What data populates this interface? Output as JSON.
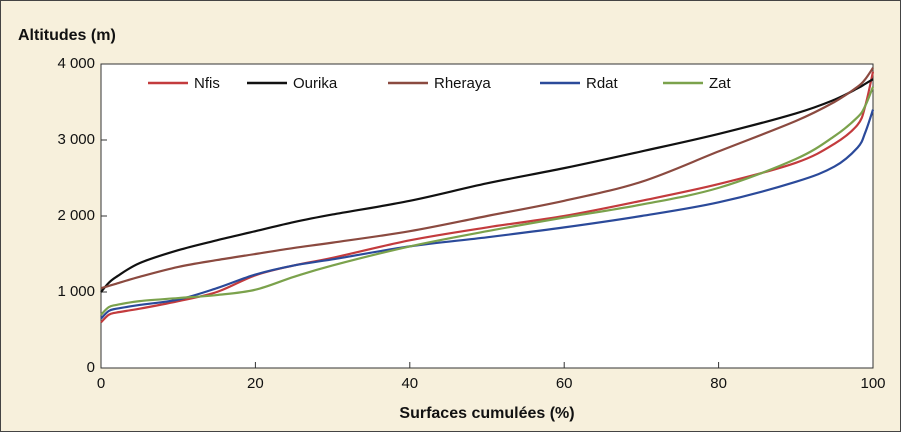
{
  "chart_data": {
    "type": "line",
    "y_label": "Altitudes (m)",
    "x_label": "Surfaces cumulées (%)",
    "x": [
      0,
      1,
      2,
      5,
      10,
      15,
      20,
      25,
      30,
      40,
      50,
      60,
      70,
      80,
      90,
      95,
      98,
      99,
      100
    ],
    "series": [
      {
        "name": "Nfis",
        "color": "#c33b3d",
        "values": [
          600,
          700,
          730,
          780,
          880,
          1000,
          1220,
          1350,
          1450,
          1680,
          1850,
          2000,
          2200,
          2420,
          2700,
          2950,
          3200,
          3450,
          3900
        ]
      },
      {
        "name": "Ourika",
        "color": "#111111",
        "values": [
          1000,
          1120,
          1200,
          1380,
          1550,
          1680,
          1800,
          1920,
          2020,
          2200,
          2430,
          2630,
          2850,
          3080,
          3350,
          3530,
          3680,
          3740,
          3800
        ]
      },
      {
        "name": "Rheraya",
        "color": "#8b4a40",
        "values": [
          1050,
          1080,
          1110,
          1200,
          1330,
          1420,
          1500,
          1580,
          1650,
          1800,
          2000,
          2200,
          2450,
          2850,
          3250,
          3500,
          3700,
          3800,
          3950
        ]
      },
      {
        "name": "Rdat",
        "color": "#2b4a9a",
        "values": [
          650,
          750,
          780,
          830,
          900,
          1050,
          1230,
          1350,
          1430,
          1600,
          1720,
          1850,
          2000,
          2180,
          2450,
          2650,
          2900,
          3100,
          3400
        ]
      },
      {
        "name": "Zat",
        "color": "#7ba24c",
        "values": [
          700,
          800,
          830,
          880,
          920,
          960,
          1030,
          1200,
          1350,
          1600,
          1800,
          1980,
          2150,
          2370,
          2750,
          3050,
          3300,
          3450,
          3700
        ]
      }
    ],
    "xlim": [
      0,
      100
    ],
    "xticks": [
      0,
      20,
      40,
      60,
      80,
      100
    ],
    "ylim": [
      0,
      4000
    ],
    "yticks": [
      0,
      {
        "value": 1000,
        "label": "1 000"
      },
      {
        "value": 2000,
        "label": "2 000"
      },
      {
        "value": 3000,
        "label": "3 000"
      },
      {
        "value": 4000,
        "label": "4 000"
      }
    ]
  }
}
